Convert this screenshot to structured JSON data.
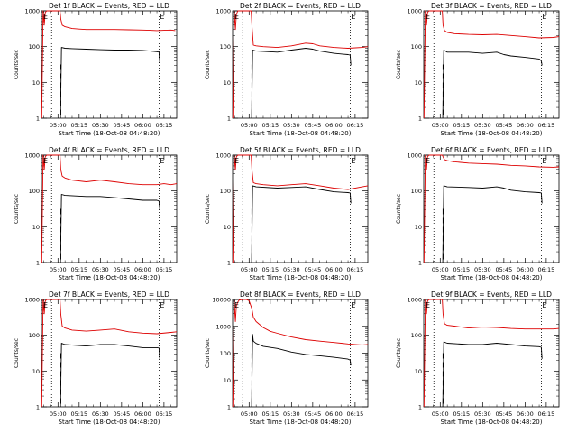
{
  "figure": {
    "x_axis_title": "Start Time (18-Oct-08 04:48:20)",
    "y_axis_title": "Counts/sec",
    "x_tick_labels": [
      "05:00",
      "05:15",
      "05:30",
      "05:45",
      "06:00",
      "06:15"
    ],
    "x_tick_minutes": [
      300,
      315,
      330,
      345,
      360,
      375
    ],
    "x_range_minutes": [
      288.33,
      384
    ],
    "y_scale": "log",
    "y_range": [
      1,
      1000
    ],
    "series_colors": {
      "events": "#000000",
      "lld": "#dd0000"
    },
    "event_marker": "E",
    "dotted_line_minutes": [
      295.5,
      371.5
    ],
    "dashed_line_minutes": [
      302
    ]
  },
  "chart_data": [
    {
      "type": "line",
      "title": "Det 1f BLACK = Events, RED = LLD",
      "ylim": [
        1,
        1000
      ],
      "y_tick_labels": [
        "1",
        "10",
        "100",
        "1000"
      ],
      "xlabel": "Start Time (18-Oct-08 04:48:20)",
      "ylabel": "Counts/sec",
      "series": [
        {
          "x": [
            288.5,
            289.5,
            290.3,
            291,
            292,
            293,
            295,
            298,
            301.5,
            302,
            303,
            305,
            310,
            315,
            320,
            330,
            340,
            350,
            360,
            365,
            370,
            375,
            380,
            383
          ],
          "values": [
            1,
            1000,
            400,
            900,
            1000,
            1000,
            1000,
            1000,
            1000,
            600,
            400,
            360,
            320,
            310,
            300,
            300,
            300,
            295,
            290,
            285,
            280,
            285,
            290,
            280
          ]
        },
        {
          "x": [
            301.8,
            302.5,
            305,
            310,
            320,
            330,
            340,
            350,
            360,
            365,
            370,
            371.5,
            372
          ],
          "values": [
            1,
            95,
            90,
            88,
            85,
            82,
            80,
            80,
            78,
            75,
            72,
            70,
            35
          ]
        }
      ]
    },
    {
      "type": "line",
      "title": "Det 2f BLACK = Events, RED = LLD",
      "ylim": [
        1,
        1000
      ],
      "y_tick_labels": [
        "1",
        "10",
        "100",
        "1000"
      ],
      "xlabel": "Start Time (18-Oct-08 04:48:20)",
      "ylabel": "Counts/sec",
      "series": [
        {
          "x": [
            288.5,
            289.5,
            290.3,
            291,
            292,
            293,
            295,
            298,
            301.5,
            302,
            303,
            305,
            310,
            320,
            330,
            340,
            345,
            350,
            360,
            370,
            380,
            384
          ],
          "values": [
            1,
            1000,
            300,
            800,
            1000,
            1000,
            1000,
            1000,
            1000,
            400,
            110,
            105,
            100,
            95,
            105,
            125,
            120,
            105,
            95,
            90,
            95,
            100
          ]
        },
        {
          "x": [
            301.8,
            302.5,
            305,
            320,
            330,
            340,
            345,
            350,
            360,
            370,
            371.5,
            372
          ],
          "values": [
            1,
            80,
            75,
            70,
            80,
            90,
            85,
            75,
            65,
            60,
            58,
            30
          ]
        }
      ]
    },
    {
      "type": "line",
      "title": "Det 3f BLACK = Events, RED = LLD",
      "ylim": [
        1,
        1000
      ],
      "y_tick_labels": [
        "1",
        "10",
        "100",
        "1000"
      ],
      "xlabel": "Start Time (18-Oct-08 04:48:20)",
      "ylabel": "Counts/sec",
      "series": [
        {
          "x": [
            288.5,
            289.5,
            290.3,
            291,
            292,
            293,
            295,
            298,
            301.5,
            302,
            303,
            305,
            310,
            320,
            330,
            340,
            350,
            360,
            370,
            380,
            384
          ],
          "values": [
            1,
            1000,
            400,
            900,
            1000,
            1000,
            1000,
            1000,
            1000,
            400,
            280,
            250,
            230,
            220,
            215,
            220,
            205,
            190,
            175,
            180,
            190
          ]
        },
        {
          "x": [
            301.8,
            302.5,
            305,
            320,
            330,
            340,
            345,
            350,
            360,
            370,
            371.5,
            372
          ],
          "values": [
            1,
            80,
            70,
            70,
            65,
            70,
            60,
            55,
            50,
            45,
            40,
            30
          ]
        }
      ]
    },
    {
      "type": "line",
      "title": "Det 4f BLACK = Events, RED = LLD",
      "ylim": [
        1,
        1000
      ],
      "y_tick_labels": [
        "1",
        "10",
        "100",
        "1000"
      ],
      "xlabel": "Start Time (18-Oct-08 04:48:20)",
      "ylabel": "Counts/sec",
      "series": [
        {
          "x": [
            288.5,
            289.5,
            290.3,
            291,
            292,
            293,
            295,
            298,
            301.5,
            302,
            303,
            305,
            310,
            320,
            330,
            340,
            350,
            360,
            370,
            375,
            380,
            384
          ],
          "values": [
            1,
            1000,
            400,
            900,
            1000,
            1000,
            1000,
            1000,
            1000,
            400,
            260,
            230,
            200,
            180,
            200,
            180,
            160,
            150,
            150,
            160,
            150,
            160
          ]
        },
        {
          "x": [
            301.8,
            302.5,
            305,
            320,
            330,
            340,
            350,
            360,
            370,
            371.5,
            372
          ],
          "values": [
            1,
            80,
            75,
            70,
            70,
            65,
            60,
            55,
            55,
            52,
            30
          ]
        }
      ]
    },
    {
      "type": "line",
      "title": "Det 5f BLACK = Events, RED = LLD",
      "ylim": [
        1,
        1000
      ],
      "y_tick_labels": [
        "1",
        "10",
        "100",
        "1000"
      ],
      "xlabel": "Start Time (18-Oct-08 04:48:20)",
      "ylabel": "Counts/sec",
      "series": [
        {
          "x": [
            288.5,
            289.5,
            290.3,
            291,
            292,
            293,
            295,
            298,
            301.5,
            302,
            303,
            305,
            310,
            320,
            330,
            340,
            350,
            360,
            370,
            380,
            384
          ],
          "values": [
            1,
            1000,
            400,
            900,
            1000,
            1000,
            1000,
            1000,
            1000,
            400,
            170,
            160,
            150,
            140,
            150,
            160,
            140,
            120,
            110,
            130,
            140
          ]
        },
        {
          "x": [
            301.8,
            302.5,
            305,
            320,
            330,
            340,
            350,
            360,
            370,
            371.5,
            372
          ],
          "values": [
            1,
            140,
            130,
            120,
            125,
            130,
            110,
            95,
            90,
            88,
            45
          ]
        }
      ]
    },
    {
      "type": "line",
      "title": "Det 6f BLACK = Events, RED = LLD",
      "ylim": [
        1,
        1000
      ],
      "y_tick_labels": [
        "1",
        "10",
        "100",
        "1000"
      ],
      "xlabel": "Start Time (18-Oct-08 04:48:20)",
      "ylabel": "Counts/sec",
      "series": [
        {
          "x": [
            288.5,
            289.5,
            290.3,
            291,
            292,
            293,
            295,
            298,
            301.5,
            302,
            303,
            305,
            310,
            320,
            330,
            340,
            350,
            360,
            370,
            380,
            384
          ],
          "values": [
            1,
            1000,
            400,
            900,
            1000,
            1000,
            1000,
            1000,
            1000,
            900,
            750,
            700,
            650,
            600,
            580,
            560,
            520,
            500,
            470,
            460,
            470
          ]
        },
        {
          "x": [
            301.8,
            302.5,
            305,
            320,
            330,
            340,
            345,
            350,
            360,
            370,
            371.5,
            372
          ],
          "values": [
            1,
            140,
            130,
            125,
            120,
            130,
            120,
            105,
            95,
            90,
            88,
            45
          ]
        }
      ]
    },
    {
      "type": "line",
      "title": "Det 7f BLACK = Events, RED = LLD",
      "ylim": [
        1,
        1000
      ],
      "y_tick_labels": [
        "1",
        "10",
        "100",
        "1000"
      ],
      "xlabel": "Start Time (18-Oct-08 04:48:20)",
      "ylabel": "Counts/sec",
      "series": [
        {
          "x": [
            288.5,
            289.5,
            290.3,
            291,
            292,
            293,
            295,
            298,
            301.5,
            302,
            303,
            305,
            310,
            320,
            330,
            340,
            350,
            360,
            370,
            380,
            384
          ],
          "values": [
            1,
            1000,
            400,
            900,
            1000,
            1000,
            1000,
            1000,
            1000,
            400,
            180,
            160,
            140,
            130,
            140,
            150,
            125,
            115,
            110,
            120,
            125
          ]
        },
        {
          "x": [
            301.8,
            302.5,
            305,
            320,
            330,
            340,
            350,
            360,
            370,
            371.5,
            372
          ],
          "values": [
            1,
            60,
            55,
            50,
            55,
            55,
            50,
            45,
            45,
            44,
            22
          ]
        }
      ]
    },
    {
      "type": "line",
      "title": "Det 8f BLACK = Events, RED = LLD",
      "ylim": [
        1,
        10000
      ],
      "y_tick_labels": [
        "1",
        "10",
        "100",
        "1000",
        "10000"
      ],
      "xlabel": "Start Time (18-Oct-08 04:48:20)",
      "ylabel": "Counts/sec",
      "series": [
        {
          "x": [
            288.5,
            289.5,
            290.3,
            291,
            292,
            293,
            295,
            298,
            300,
            302,
            303,
            305,
            310,
            315,
            320,
            330,
            340,
            350,
            360,
            370,
            375,
            380,
            384
          ],
          "values": [
            1,
            9000,
            1500,
            6000,
            8000,
            9500,
            10000,
            10000,
            9000,
            4500,
            2200,
            1500,
            900,
            650,
            550,
            400,
            320,
            280,
            250,
            220,
            210,
            200,
            210
          ]
        },
        {
          "x": [
            301.8,
            302.5,
            303,
            305,
            310,
            320,
            330,
            340,
            350,
            360,
            370,
            371.5,
            372
          ],
          "values": [
            1,
            500,
            280,
            230,
            180,
            150,
            110,
            90,
            80,
            70,
            60,
            55,
            35
          ]
        }
      ]
    },
    {
      "type": "line",
      "title": "Det 9f BLACK = Events, RED = LLD",
      "ylim": [
        1,
        1000
      ],
      "y_tick_labels": [
        "1",
        "10",
        "100",
        "1000"
      ],
      "xlabel": "Start Time (18-Oct-08 04:48:20)",
      "ylabel": "Counts/sec",
      "series": [
        {
          "x": [
            288.5,
            289.5,
            290.3,
            291,
            292,
            293,
            295,
            298,
            301.5,
            302,
            303,
            305,
            310,
            320,
            330,
            340,
            350,
            360,
            370,
            380,
            384
          ],
          "values": [
            1,
            1000,
            400,
            900,
            1000,
            1000,
            1000,
            1000,
            1000,
            400,
            210,
            190,
            180,
            160,
            170,
            165,
            155,
            150,
            150,
            150,
            155
          ]
        },
        {
          "x": [
            301.8,
            302.5,
            305,
            320,
            330,
            340,
            350,
            360,
            370,
            371.5,
            372
          ],
          "values": [
            1,
            65,
            60,
            55,
            55,
            60,
            55,
            50,
            48,
            46,
            22
          ]
        }
      ]
    }
  ]
}
